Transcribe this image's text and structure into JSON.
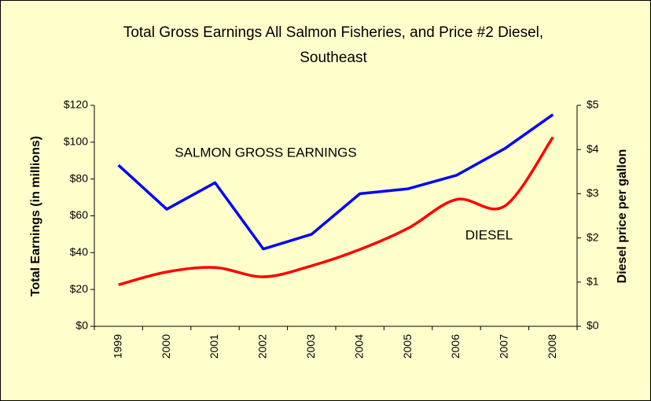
{
  "chart_data": {
    "type": "line",
    "title": "Total Gross Earnings All Salmon Fisheries, and Price #2 Diesel,",
    "subtitle": "Southeast",
    "y_label": "Total Earnings (in millions)",
    "y2_label": "Diesel price per gallon",
    "annotations": [
      "SALMON GROSS EARNINGS",
      "DIESEL"
    ],
    "categories": [
      "1999",
      "2000",
      "2001",
      "2002",
      "2003",
      "2004",
      "2005",
      "2006",
      "2007",
      "2008"
    ],
    "series": [
      {
        "name": "SALMON GROSS EARNINGS",
        "color": "#0000ff",
        "values": [
          87.5,
          63.6,
          78,
          42,
          50,
          72,
          74.7,
          82,
          96.5,
          115
        ]
      },
      {
        "name": "DIESEL",
        "color": "#ff0000",
        "axis": "y2",
        "values": [
          0.94,
          1.23,
          1.33,
          1.12,
          1.37,
          1.74,
          2.22,
          2.87,
          2.72,
          4.28
        ]
      }
    ],
    "ylim": [
      0,
      120
    ],
    "yticks": [
      {
        "value": 0,
        "label": "$0"
      },
      {
        "value": 20,
        "label": "$20"
      },
      {
        "value": 40,
        "label": "$40"
      },
      {
        "value": 60,
        "label": "$60"
      },
      {
        "value": 80,
        "label": "$80"
      },
      {
        "value": 100,
        "label": "$100"
      },
      {
        "value": 120,
        "label": "$120"
      }
    ],
    "y2lim": [
      0,
      5
    ],
    "y2ticks": [
      {
        "value": 0,
        "label": "$0"
      },
      {
        "value": 1,
        "label": "$1"
      },
      {
        "value": 2,
        "label": "$2"
      },
      {
        "value": 3,
        "label": "$3"
      },
      {
        "value": 4,
        "label": "$4"
      },
      {
        "value": 5,
        "label": "$5"
      }
    ]
  }
}
